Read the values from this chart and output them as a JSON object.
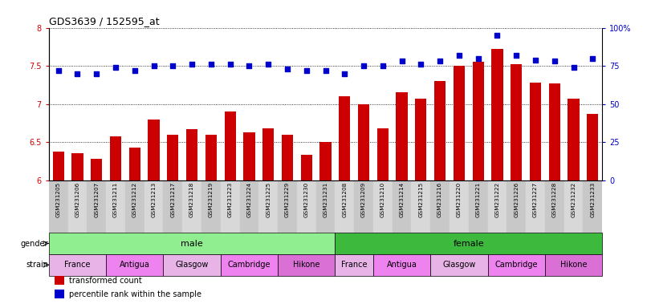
{
  "title": "GDS3639 / 152595_at",
  "samples": [
    "GSM231205",
    "GSM231206",
    "GSM231207",
    "GSM231211",
    "GSM231212",
    "GSM231213",
    "GSM231217",
    "GSM231218",
    "GSM231219",
    "GSM231223",
    "GSM231224",
    "GSM231225",
    "GSM231229",
    "GSM231230",
    "GSM231231",
    "GSM231208",
    "GSM231209",
    "GSM231210",
    "GSM231214",
    "GSM231215",
    "GSM231216",
    "GSM231220",
    "GSM231221",
    "GSM231222",
    "GSM231226",
    "GSM231227",
    "GSM231228",
    "GSM231232",
    "GSM231233"
  ],
  "bar_values": [
    6.38,
    6.36,
    6.28,
    6.58,
    6.43,
    6.8,
    6.6,
    6.67,
    6.6,
    6.9,
    6.63,
    6.68,
    6.6,
    6.33,
    6.5,
    7.1,
    7.0,
    6.68,
    7.15,
    7.07,
    7.3,
    7.5,
    7.55,
    7.72,
    7.52,
    7.28,
    7.27,
    7.07,
    6.87
  ],
  "percentile_values": [
    72,
    70,
    70,
    74,
    72,
    75,
    75,
    76,
    76,
    76,
    75,
    76,
    73,
    72,
    72,
    70,
    75,
    75,
    78,
    76,
    78,
    82,
    80,
    95,
    82,
    79,
    78,
    74,
    80
  ],
  "bar_color": "#cc0000",
  "percentile_color": "#0000cc",
  "ylim_left": [
    6.0,
    8.0
  ],
  "ylim_right": [
    0,
    100
  ],
  "yticks_left": [
    6.0,
    6.5,
    7.0,
    7.5,
    8.0
  ],
  "yticks_right": [
    0,
    25,
    50,
    75,
    100
  ],
  "gender_groups": [
    {
      "label": "male",
      "start": 0,
      "end": 15,
      "color": "#90ee90"
    },
    {
      "label": "female",
      "start": 15,
      "end": 29,
      "color": "#3dba3d"
    }
  ],
  "strain_groups": [
    {
      "label": "France",
      "start": 0,
      "end": 3,
      "color": "#e8b4e8"
    },
    {
      "label": "Antigua",
      "start": 3,
      "end": 6,
      "color": "#ee82ee"
    },
    {
      "label": "Glasgow",
      "start": 6,
      "end": 9,
      "color": "#e8b4e8"
    },
    {
      "label": "Cambridge",
      "start": 9,
      "end": 12,
      "color": "#ee82ee"
    },
    {
      "label": "Hikone",
      "start": 12,
      "end": 15,
      "color": "#da70d6"
    },
    {
      "label": "France",
      "start": 15,
      "end": 17,
      "color": "#e8b4e8"
    },
    {
      "label": "Antigua",
      "start": 17,
      "end": 20,
      "color": "#ee82ee"
    },
    {
      "label": "Glasgow",
      "start": 20,
      "end": 23,
      "color": "#e8b4e8"
    },
    {
      "label": "Cambridge",
      "start": 23,
      "end": 26,
      "color": "#ee82ee"
    },
    {
      "label": "Hikone",
      "start": 26,
      "end": 29,
      "color": "#da70d6"
    }
  ],
  "legend_items": [
    {
      "label": "transformed count",
      "color": "#cc0000"
    },
    {
      "label": "percentile rank within the sample",
      "color": "#0000cc"
    }
  ],
  "background_color": "#ffffff"
}
